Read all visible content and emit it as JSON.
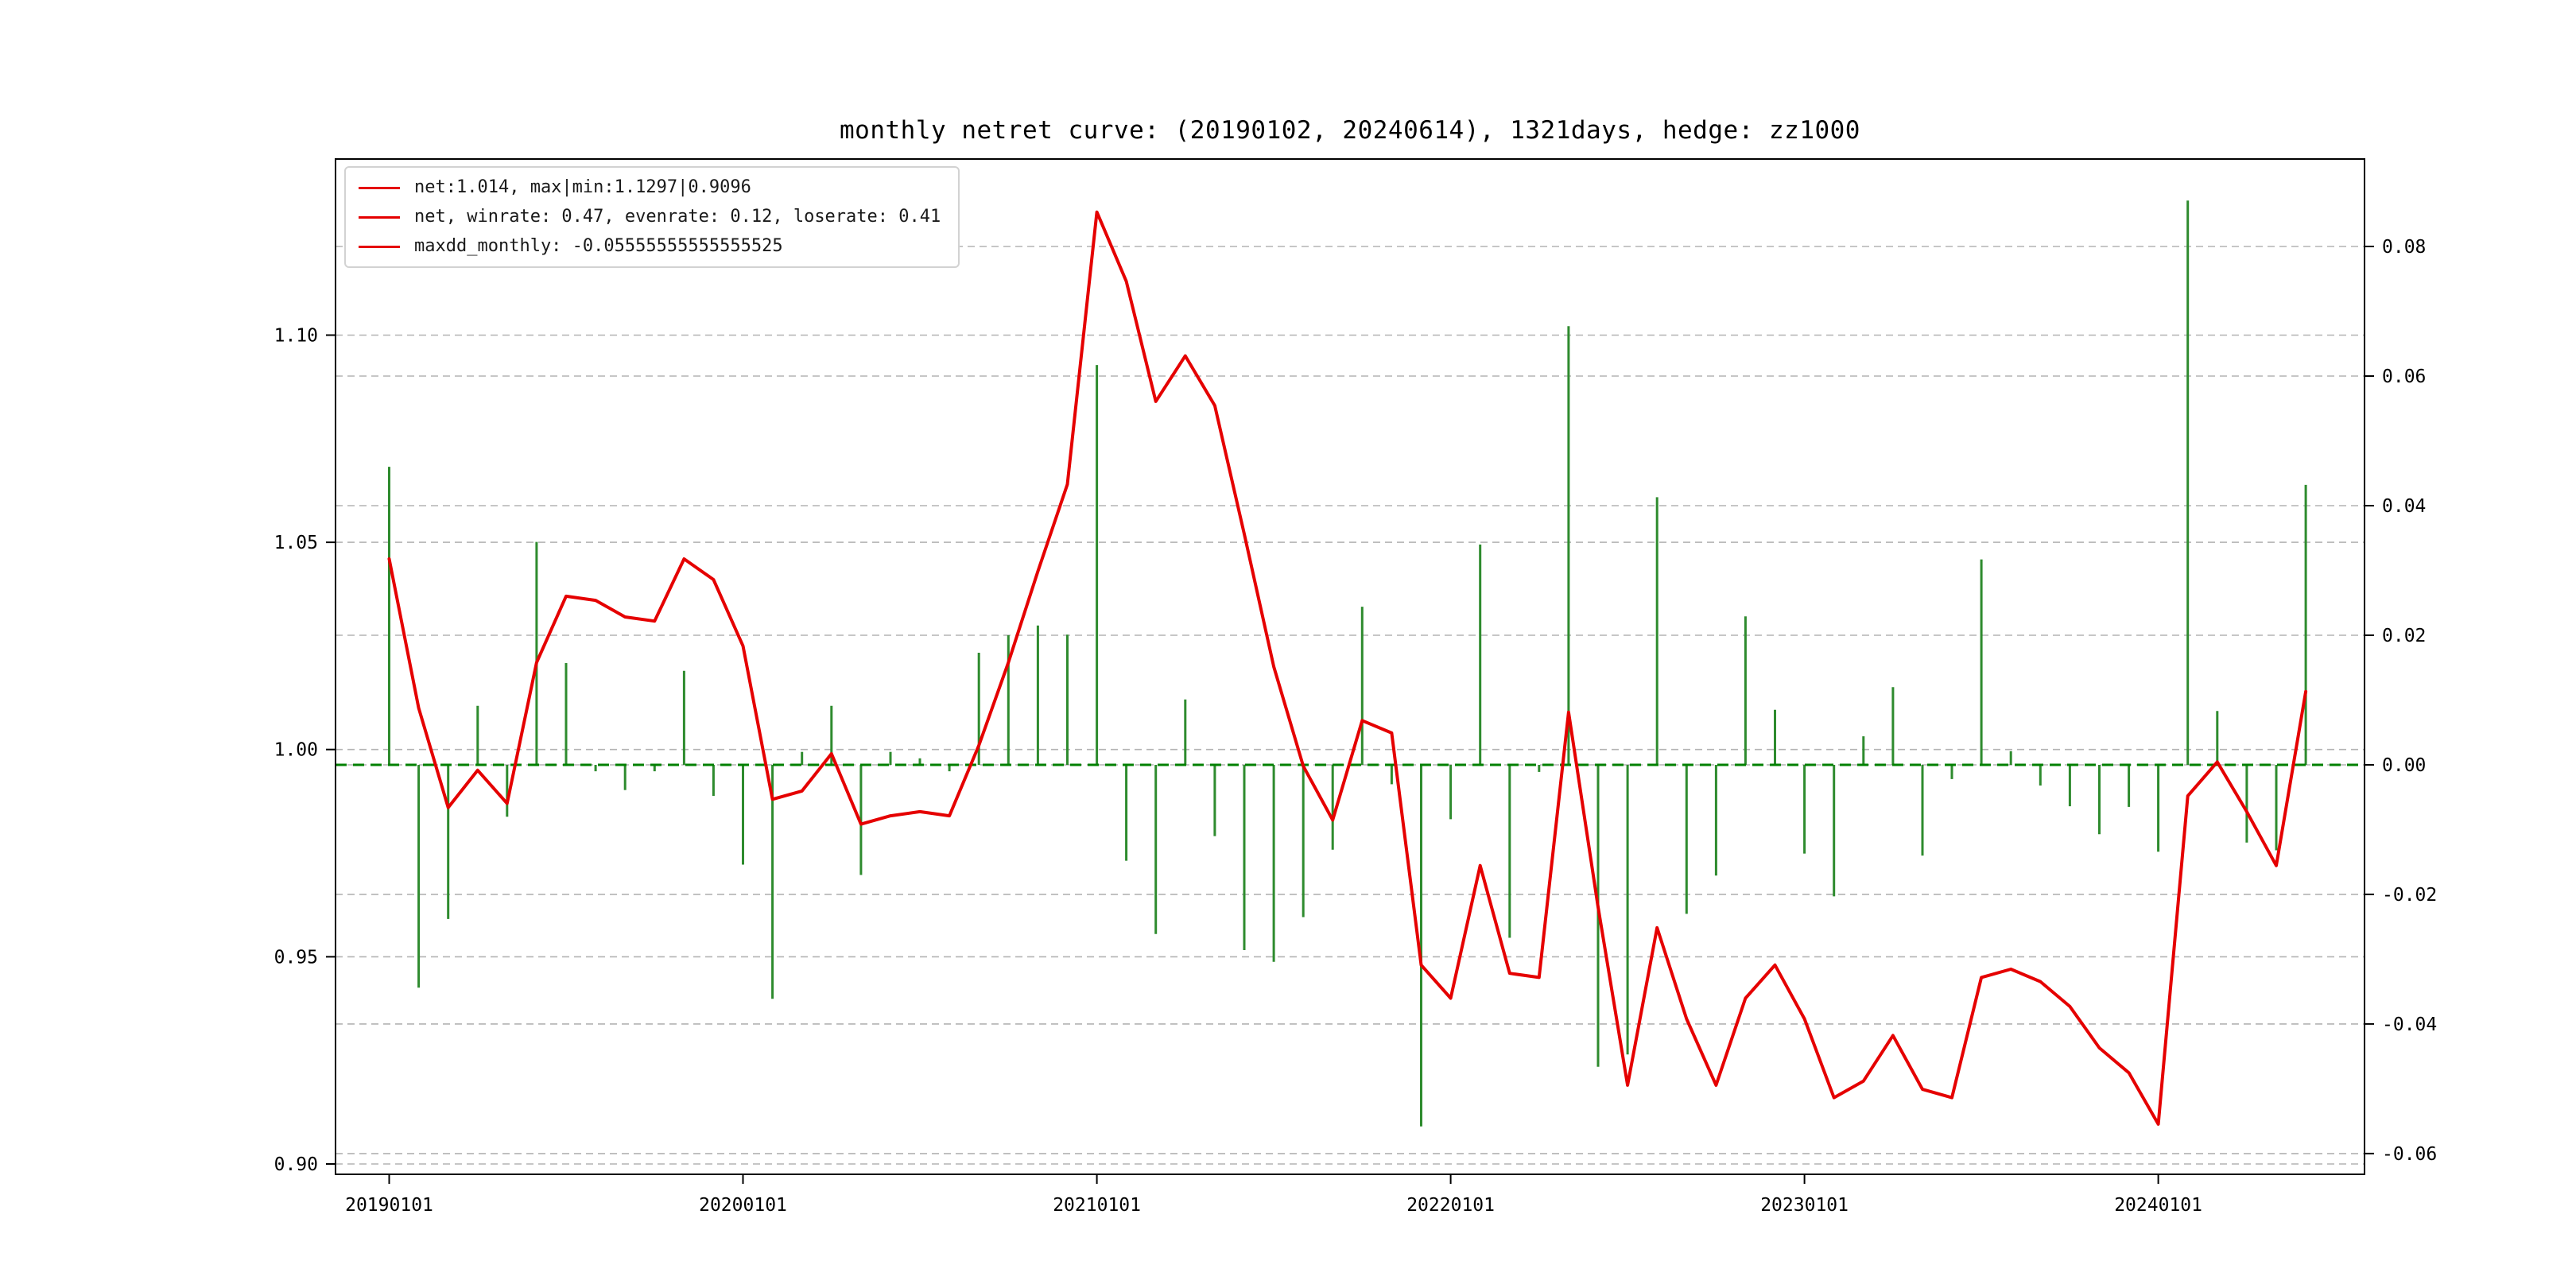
{
  "title": "monthly netret curve: (20190102, 20240614), 1321days, hedge: zz1000",
  "legend": {
    "items": [
      {
        "label": "net:1.014, max|min:1.1297|0.9096",
        "color": "#e50000"
      },
      {
        "label": "net, winrate: 0.47, evenrate: 0.12, loserate: 0.41",
        "color": "#e50000"
      },
      {
        "label": "maxdd_monthly: -0.05555555555555525",
        "color": "#e50000"
      }
    ]
  },
  "colors": {
    "net_line": "#e50000",
    "bars": "#2e8b2e",
    "zero_line": "#008000",
    "grid": "#b3b3b3",
    "axis": "#000000",
    "legend_border": "#d2d2d2"
  },
  "chart_data": {
    "type": "line",
    "title": "monthly netret curve: (20190102, 20240614), 1321days, hedge: zz1000",
    "x": [
      "2019-01",
      "2019-02",
      "2019-03",
      "2019-04",
      "2019-05",
      "2019-06",
      "2019-07",
      "2019-08",
      "2019-09",
      "2019-10",
      "2019-11",
      "2019-12",
      "2020-01",
      "2020-02",
      "2020-03",
      "2020-04",
      "2020-05",
      "2020-06",
      "2020-07",
      "2020-08",
      "2020-09",
      "2020-10",
      "2020-11",
      "2020-12",
      "2021-01",
      "2021-02",
      "2021-03",
      "2021-04",
      "2021-05",
      "2021-06",
      "2021-07",
      "2021-08",
      "2021-09",
      "2021-10",
      "2021-11",
      "2021-12",
      "2022-01",
      "2022-02",
      "2022-03",
      "2022-04",
      "2022-05",
      "2022-06",
      "2022-07",
      "2022-08",
      "2022-09",
      "2022-10",
      "2022-11",
      "2022-12",
      "2023-01",
      "2023-02",
      "2023-03",
      "2023-04",
      "2023-05",
      "2023-06",
      "2023-07",
      "2023-08",
      "2023-09",
      "2023-10",
      "2023-11",
      "2023-12",
      "2024-01",
      "2024-02",
      "2024-03",
      "2024-04",
      "2024-05",
      "2024-06"
    ],
    "series": [
      {
        "name": "net",
        "type": "line",
        "axis": "left",
        "color": "#e50000",
        "values": [
          1.046,
          1.01,
          0.986,
          0.995,
          0.987,
          1.021,
          1.037,
          1.036,
          1.032,
          1.031,
          1.046,
          1.041,
          1.025,
          0.988,
          0.99,
          0.999,
          0.982,
          0.984,
          0.985,
          0.984,
          1.001,
          1.021,
          1.043,
          1.064,
          1.1297,
          1.113,
          1.084,
          1.095,
          1.083,
          1.052,
          1.02,
          0.996,
          0.983,
          1.007,
          1.004,
          0.948,
          0.94,
          0.972,
          0.946,
          0.945,
          1.009,
          0.962,
          0.919,
          0.957,
          0.935,
          0.919,
          0.94,
          0.948,
          0.935,
          0.916,
          0.92,
          0.931,
          0.918,
          0.916,
          0.945,
          0.947,
          0.944,
          0.938,
          0.928,
          0.922,
          0.9096,
          0.9888,
          0.997,
          0.985,
          0.972,
          1.014
        ]
      },
      {
        "name": "monthly_return",
        "type": "bar",
        "axis": "right",
        "color": "#2e8b2e",
        "values": [
          0.046,
          -0.0344,
          -0.0238,
          0.0091,
          -0.008,
          0.0344,
          0.0157,
          -0.001,
          -0.0039,
          -0.001,
          0.0145,
          -0.0048,
          -0.0154,
          -0.0361,
          0.002,
          0.0091,
          -0.017,
          0.002,
          0.001,
          -0.001,
          0.0173,
          0.02,
          0.0215,
          0.0201,
          0.0617,
          -0.0148,
          -0.0261,
          0.0101,
          -0.011,
          -0.0286,
          -0.0304,
          -0.0235,
          -0.0131,
          0.0244,
          -0.003,
          -0.0558,
          -0.0084,
          0.034,
          -0.0267,
          -0.0011,
          0.0677,
          -0.0466,
          -0.0447,
          0.0413,
          -0.023,
          -0.0171,
          0.0229,
          0.0085,
          -0.0137,
          -0.0203,
          0.0044,
          0.012,
          -0.014,
          -0.0022,
          0.0317,
          0.0021,
          -0.0032,
          -0.0064,
          -0.0107,
          -0.0065,
          -0.0134,
          0.0871,
          0.0083,
          -0.012,
          -0.0132,
          0.0432
        ]
      }
    ],
    "x_tick_labels": [
      "20190101",
      "20200101",
      "20210101",
      "20220101",
      "20230101",
      "20240101"
    ],
    "x_tick_month_index": [
      0,
      12,
      24,
      36,
      48,
      60
    ],
    "left_axis": {
      "ticks": [
        0.9,
        0.95,
        1.0,
        1.05,
        1.1
      ],
      "tick_labels": [
        "0.90",
        "0.95",
        "1.00",
        "1.05",
        "1.10"
      ],
      "lim": [
        0.8975,
        1.1425
      ]
    },
    "right_axis": {
      "ticks": [
        -0.06,
        -0.04,
        -0.02,
        0,
        0.02,
        0.04,
        0.06,
        0.08
      ],
      "tick_labels": [
        "-0.06",
        "-0.04",
        "-0.02",
        "0.00",
        "0.02",
        "0.04",
        "0.06",
        "0.08"
      ],
      "lim": [
        -0.0632,
        0.0935
      ]
    },
    "zero_line": {
      "axis": "right",
      "value": 0,
      "style": "dashed",
      "color": "#008000"
    },
    "grid": true,
    "legend_position": "upper left"
  }
}
